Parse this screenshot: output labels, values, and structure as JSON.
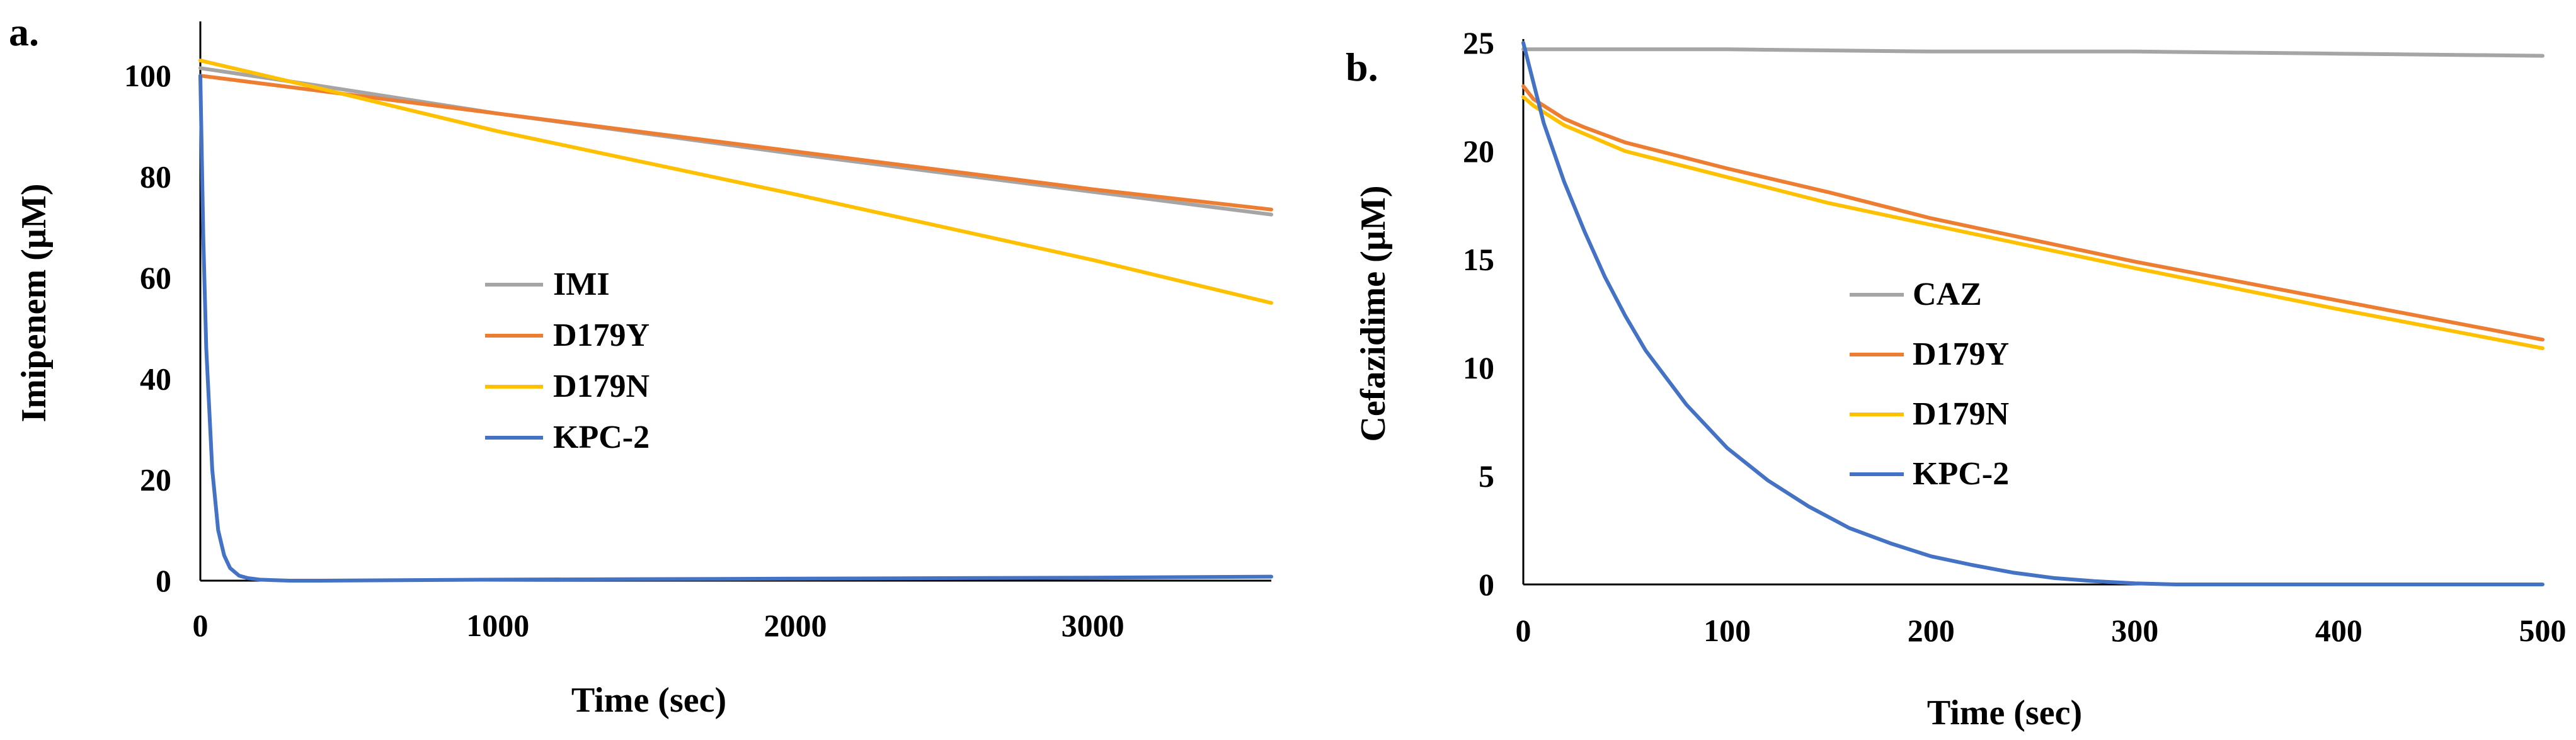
{
  "chart_data": [
    {
      "panel_label": "a.",
      "type": "line",
      "title": "",
      "xlabel": "Time (sec)",
      "ylabel": "Imipenem (µM)",
      "xlim": [
        0,
        3600
      ],
      "ylim": [
        0,
        110
      ],
      "x_ticks": [
        0,
        1000,
        2000,
        3000
      ],
      "y_ticks": [
        0,
        20,
        40,
        60,
        80,
        100
      ],
      "legend_position": "center",
      "series": [
        {
          "name": "IMI",
          "color": "#A5A5A5",
          "x": [
            0,
            400,
            1000,
            2000,
            3000,
            3600
          ],
          "y": [
            101.5,
            98,
            92.5,
            84.5,
            77,
            72.5
          ]
        },
        {
          "name": "D179Y",
          "color": "#ED7D31",
          "x": [
            0,
            400,
            1000,
            2000,
            3000,
            3600
          ],
          "y": [
            100,
            97,
            92.5,
            85,
            77.5,
            73.5
          ]
        },
        {
          "name": "D179N",
          "color": "#FFC000",
          "x": [
            0,
            400,
            1000,
            2000,
            3000,
            3600
          ],
          "y": [
            103,
            97.5,
            89,
            76.5,
            63.5,
            55
          ]
        },
        {
          "name": "KPC-2",
          "color": "#4472C4",
          "x": [
            0,
            10,
            20,
            40,
            60,
            80,
            100,
            130,
            160,
            200,
            250,
            300,
            400,
            1000,
            2000,
            3000,
            3600
          ],
          "y": [
            100,
            68,
            46,
            22,
            10,
            5,
            2.5,
            1,
            0.5,
            0.2,
            0.1,
            0,
            0,
            0.2,
            0.4,
            0.6,
            0.8
          ]
        }
      ]
    },
    {
      "panel_label": "b.",
      "type": "line",
      "title": "",
      "xlabel": "Time (sec)",
      "ylabel": "Cefazidime (µM)",
      "xlim": [
        0,
        500
      ],
      "ylim": [
        0,
        25
      ],
      "x_ticks": [
        0,
        100,
        200,
        300,
        400,
        500
      ],
      "y_ticks": [
        0,
        5,
        10,
        15,
        20,
        25
      ],
      "legend_position": "center",
      "series": [
        {
          "name": "CAZ",
          "color": "#A5A5A5",
          "x": [
            0,
            100,
            200,
            300,
            400,
            500
          ],
          "y": [
            24.7,
            24.7,
            24.6,
            24.6,
            24.5,
            24.4
          ]
        },
        {
          "name": "D179Y",
          "color": "#ED7D31",
          "x": [
            0,
            5,
            10,
            20,
            30,
            50,
            100,
            150,
            200,
            300,
            400,
            500
          ],
          "y": [
            23,
            22.4,
            22.1,
            21.5,
            21.1,
            20.4,
            19.2,
            18.1,
            16.9,
            14.9,
            13.1,
            11.3
          ]
        },
        {
          "name": "D179N",
          "color": "#FFC000",
          "x": [
            0,
            5,
            10,
            20,
            30,
            50,
            100,
            150,
            200,
            300,
            400,
            500
          ],
          "y": [
            22.5,
            22.1,
            21.8,
            21.2,
            20.8,
            20,
            18.8,
            17.6,
            16.6,
            14.6,
            12.7,
            10.9
          ]
        },
        {
          "name": "KPC-2",
          "color": "#4472C4",
          "x": [
            0,
            10,
            20,
            30,
            40,
            50,
            60,
            80,
            100,
            120,
            140,
            160,
            180,
            200,
            220,
            240,
            260,
            280,
            300,
            320,
            400,
            500
          ],
          "y": [
            25,
            21.3,
            18.6,
            16.3,
            14.2,
            12.4,
            10.8,
            8.3,
            6.3,
            4.8,
            3.6,
            2.6,
            1.9,
            1.3,
            0.9,
            0.55,
            0.3,
            0.15,
            0.05,
            0,
            0,
            0
          ]
        }
      ]
    }
  ]
}
